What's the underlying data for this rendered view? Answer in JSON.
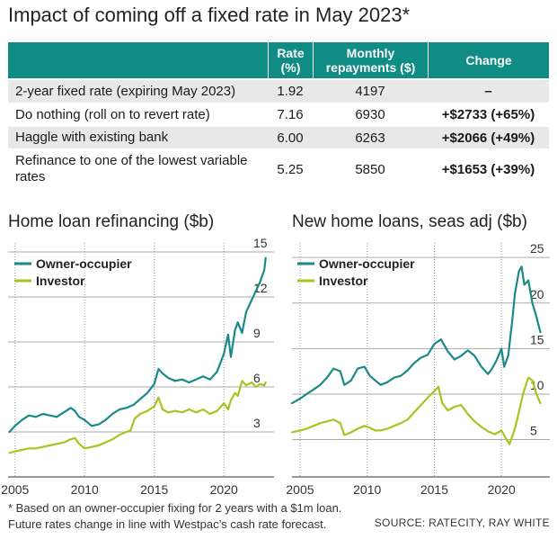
{
  "title": "Impact of coming off a fixed rate in May 2023*",
  "table": {
    "headers": [
      "",
      "Rate (%)",
      "Monthly repayments ($)",
      "Change"
    ],
    "rows": [
      {
        "label": "2-year fixed rate (expiring May 2023)",
        "rate": "1.92",
        "repayment": "4197",
        "change": "–"
      },
      {
        "label": "Do nothing (roll on to revert rate)",
        "rate": "7.16",
        "repayment": "6930",
        "change": "+$2733 (+65%)"
      },
      {
        "label": "Haggle with existing bank",
        "rate": "6.00",
        "repayment": "6263",
        "change": "+$2066 (+49%)"
      },
      {
        "label": "Refinance to one of the lowest variable rates",
        "rate": "5.25",
        "repayment": "5850",
        "change": "+$1653 (+39%)"
      }
    ]
  },
  "colors": {
    "owner_occupier": "#1a8a87",
    "investor": "#a6c520",
    "header_bg": "#0f8c84",
    "row_shade": "#e8e8e8",
    "grid": "#aaaaaa"
  },
  "chart_data": [
    {
      "type": "line",
      "title": "Home loan refinancing ($b)",
      "xlim": [
        2004.5,
        2023.6
      ],
      "ylim": [
        0,
        15.6
      ],
      "yticks": [
        3,
        6,
        9,
        12,
        15
      ],
      "xticks": [
        2005,
        2010,
        2015,
        2020
      ],
      "legend": "top-left",
      "series": [
        {
          "name": "Owner-occupier",
          "x": [
            2004.6,
            2005,
            2005.5,
            2006,
            2006.5,
            2007,
            2007.5,
            2008,
            2008.5,
            2009,
            2009.3,
            2009.6,
            2010,
            2010.5,
            2011,
            2011.5,
            2012,
            2012.5,
            2013,
            2013.5,
            2014,
            2014.5,
            2015,
            2015.3,
            2015.6,
            2016,
            2016.5,
            2017,
            2017.5,
            2018,
            2018.5,
            2019,
            2019.5,
            2020,
            2020.3,
            2020.5,
            2020.8,
            2021,
            2021.3,
            2021.6,
            2022,
            2022.3,
            2022.6,
            2022.9,
            2023
          ],
          "values": [
            3.0,
            3.4,
            3.8,
            4.1,
            4.0,
            4.2,
            4.1,
            4.0,
            4.3,
            4.6,
            4.4,
            4.0,
            3.8,
            3.4,
            3.5,
            3.8,
            4.2,
            4.5,
            4.6,
            4.8,
            5.2,
            5.6,
            6.2,
            7.2,
            6.9,
            6.6,
            6.4,
            6.5,
            6.3,
            6.5,
            6.7,
            6.5,
            7.0,
            8.2,
            9.5,
            8.0,
            9.8,
            10.3,
            9.6,
            11.0,
            11.8,
            12.4,
            13.0,
            13.8,
            14.6
          ]
        },
        {
          "name": "Investor",
          "x": [
            2004.6,
            2005,
            2005.5,
            2006,
            2006.5,
            2007,
            2007.5,
            2008,
            2008.5,
            2009,
            2009.3,
            2009.6,
            2010,
            2010.5,
            2011,
            2011.5,
            2012,
            2012.5,
            2013,
            2013.3,
            2013.6,
            2014,
            2014.5,
            2015,
            2015.3,
            2015.6,
            2016,
            2016.5,
            2017,
            2017.5,
            2018,
            2018.5,
            2019,
            2019.5,
            2020,
            2020.3,
            2020.5,
            2020.8,
            2021,
            2021.3,
            2021.6,
            2022,
            2022.3,
            2022.6,
            2022.9,
            2023
          ],
          "values": [
            1.6,
            1.7,
            1.8,
            1.9,
            1.9,
            2.0,
            2.1,
            2.2,
            2.3,
            2.5,
            2.6,
            2.2,
            1.9,
            2.0,
            2.1,
            2.3,
            2.5,
            2.8,
            3.0,
            3.1,
            3.9,
            4.2,
            4.4,
            4.7,
            5.3,
            4.5,
            4.3,
            4.4,
            4.3,
            4.5,
            4.3,
            4.5,
            4.2,
            4.4,
            4.9,
            4.5,
            5.1,
            5.6,
            5.4,
            6.4,
            6.1,
            6.3,
            6.0,
            6.2,
            6.1,
            6.3
          ]
        }
      ]
    },
    {
      "type": "line",
      "title": "New home loans, seas adj ($b)",
      "xlim": [
        2004.4,
        2023.6
      ],
      "ylim": [
        0.9,
        26.6
      ],
      "yticks": [
        5,
        10,
        15,
        20,
        25
      ],
      "xticks": [
        2005,
        2010,
        2015,
        2020
      ],
      "legend": "top-left",
      "series": [
        {
          "name": "Owner-occupier",
          "x": [
            2004.4,
            2005,
            2005.5,
            2006,
            2006.5,
            2007,
            2007.5,
            2008,
            2008.3,
            2008.8,
            2009.3,
            2009.8,
            2010.2,
            2010.6,
            2011,
            2011.5,
            2012,
            2012.5,
            2013,
            2013.5,
            2014,
            2014.5,
            2015,
            2015.5,
            2016,
            2016.5,
            2017,
            2017.5,
            2018,
            2018.5,
            2019,
            2019.3,
            2019.6,
            2020,
            2020.2,
            2020.5,
            2020.8,
            2021,
            2021.3,
            2021.5,
            2021.7,
            2022,
            2022.3,
            2022.6,
            2022.9
          ],
          "values": [
            9.0,
            9.5,
            10.0,
            10.5,
            11.0,
            11.8,
            12.8,
            12.5,
            11.0,
            11.5,
            12.8,
            13.0,
            12.0,
            11.5,
            11.0,
            11.3,
            11.8,
            12.0,
            12.6,
            13.4,
            14.0,
            14.3,
            15.5,
            16.0,
            14.7,
            13.8,
            14.2,
            14.8,
            14.2,
            13.0,
            12.2,
            12.8,
            13.6,
            15.0,
            13.0,
            14.2,
            18.0,
            21.0,
            23.5,
            24.0,
            22.0,
            22.5,
            20.0,
            18.5,
            16.8
          ]
        },
        {
          "name": "Investor",
          "x": [
            2004.4,
            2005,
            2005.5,
            2006,
            2006.5,
            2007,
            2007.5,
            2008,
            2008.3,
            2008.8,
            2009.3,
            2009.8,
            2010.2,
            2010.6,
            2011,
            2011.5,
            2012,
            2012.5,
            2013,
            2013.5,
            2014,
            2014.5,
            2015,
            2015.3,
            2015.6,
            2016,
            2016.5,
            2017,
            2017.5,
            2018,
            2018.5,
            2019,
            2019.5,
            2020,
            2020.3,
            2020.6,
            2021,
            2021.3,
            2021.6,
            2022,
            2022.3,
            2022.6,
            2022.9
          ],
          "values": [
            5.8,
            6.0,
            6.2,
            6.5,
            6.8,
            7.0,
            7.2,
            6.8,
            5.5,
            5.8,
            6.2,
            6.5,
            6.3,
            6.0,
            6.0,
            6.2,
            6.5,
            6.8,
            7.2,
            8.0,
            8.8,
            9.6,
            10.3,
            10.8,
            9.0,
            8.2,
            8.6,
            8.8,
            7.8,
            7.0,
            6.4,
            5.9,
            5.6,
            6.0,
            5.2,
            4.5,
            6.2,
            8.0,
            10.0,
            11.8,
            11.5,
            10.0,
            9.0
          ]
        }
      ]
    }
  ],
  "footnote": [
    "* Based on an owner-occupier fixing for 2 years with a $1m loan.",
    "Future rates change in line with Westpac’s cash rate forecast."
  ],
  "source": "SOURCE: RATECITY, RAY WHITE"
}
